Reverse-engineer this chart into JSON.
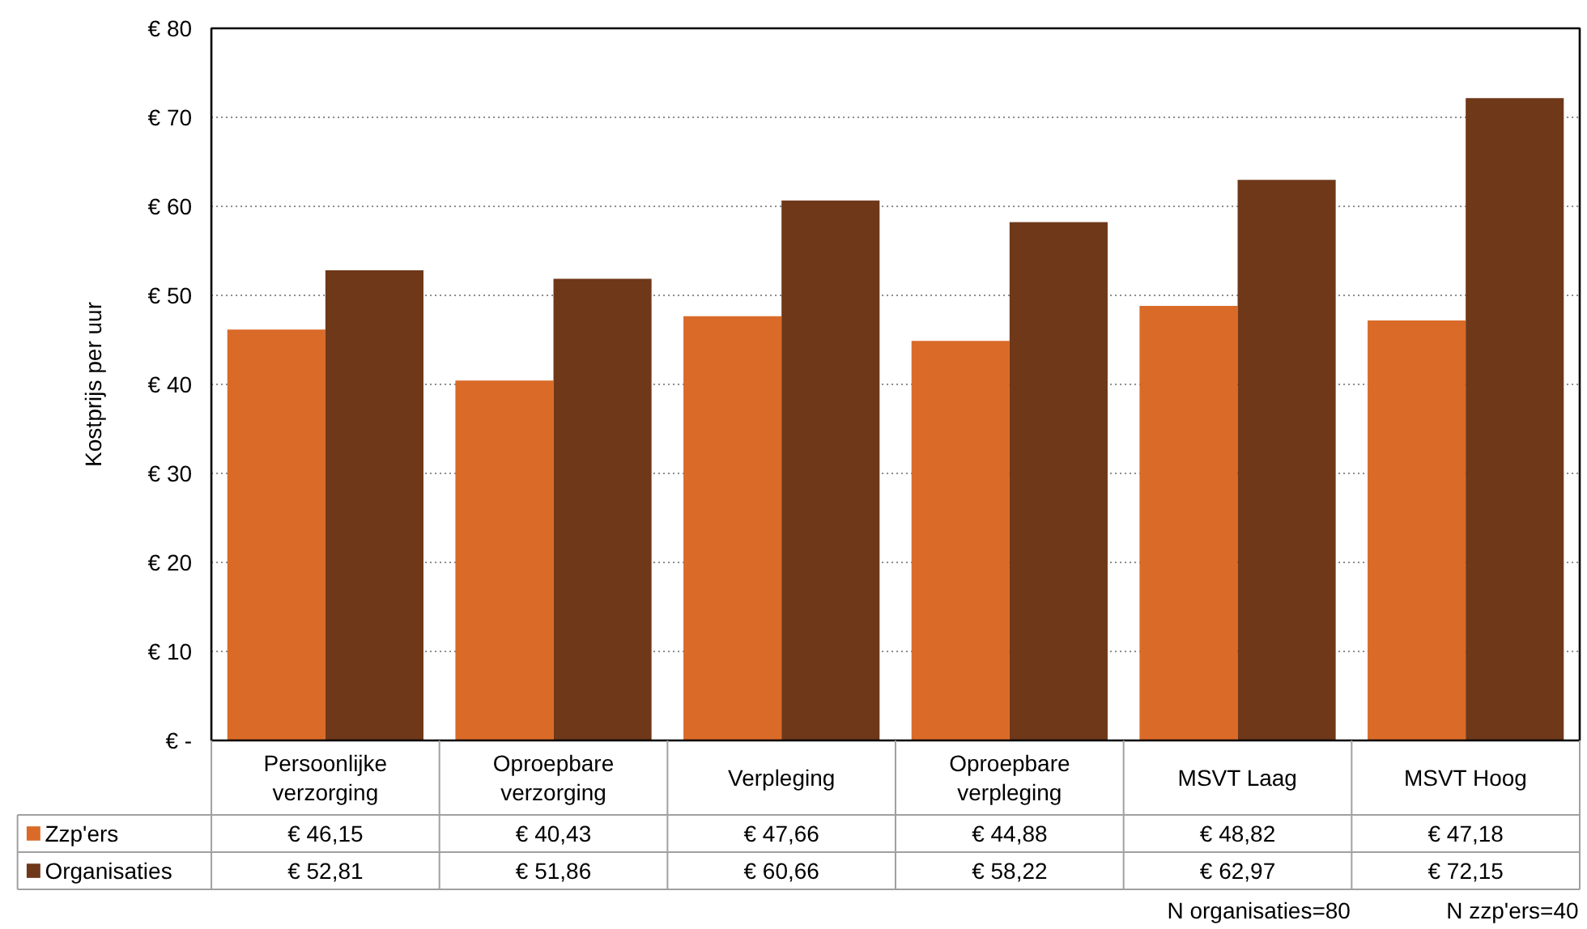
{
  "chart_data": {
    "type": "bar",
    "categories": [
      "Persoonlijke verzorging",
      "Oproepbare verzorging",
      "Verpleging",
      "Oproepbare verpleging",
      "MSVT Laag",
      "MSVT Hoog"
    ],
    "series": [
      {
        "name": "Zzp'ers",
        "color": "#d96a28",
        "values": [
          46.15,
          40.43,
          47.66,
          44.88,
          48.82,
          47.18
        ],
        "value_labels": [
          "€ 46,15",
          "€ 40,43",
          "€ 47,66",
          "€ 44,88",
          "€ 48,82",
          "€ 47,18"
        ]
      },
      {
        "name": "Organisaties",
        "color": "#6e3819",
        "values": [
          52.81,
          51.86,
          60.66,
          58.22,
          62.97,
          72.15
        ],
        "value_labels": [
          "€ 52,81",
          "€ 51,86",
          "€ 60,66",
          "€ 58,22",
          "€ 62,97",
          "€ 72,15"
        ]
      }
    ],
    "ylabel": "Kostprijs per uur",
    "ylim": [
      0,
      80
    ],
    "yticks": [
      {
        "value": 0,
        "label": "€ -"
      },
      {
        "value": 10,
        "label": "€ 10"
      },
      {
        "value": 20,
        "label": "€ 20"
      },
      {
        "value": 30,
        "label": "€ 30"
      },
      {
        "value": 40,
        "label": "€ 40"
      },
      {
        "value": 50,
        "label": "€ 50"
      },
      {
        "value": 60,
        "label": "€ 60"
      },
      {
        "value": 70,
        "label": "€ 70"
      },
      {
        "value": 80,
        "label": "€ 80"
      }
    ],
    "grid": "y",
    "legend": "bottom",
    "annotations": [
      "N organisaties=80",
      "N zzp'ers=40"
    ]
  }
}
